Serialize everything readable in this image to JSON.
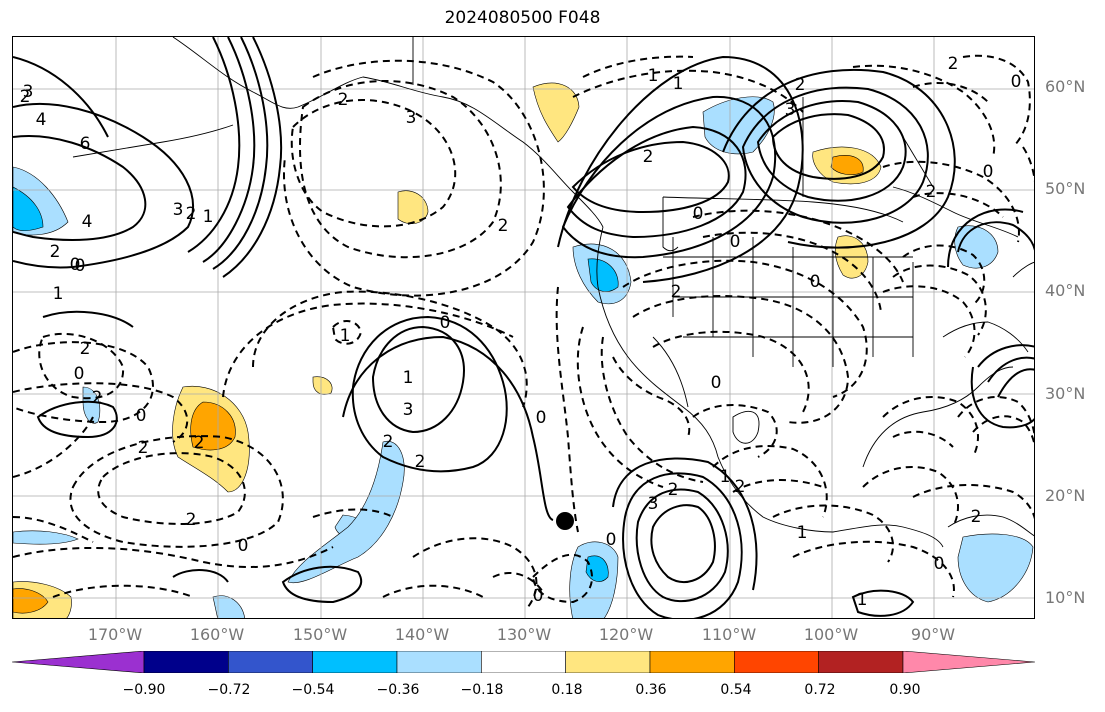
{
  "title": "2024080500 F048",
  "lat_labels": [
    "60°N",
    "50°N",
    "40°N",
    "30°N",
    "20°N",
    "10°N"
  ],
  "lon_labels": [
    "170°W",
    "160°W",
    "150°W",
    "140°W",
    "130°W",
    "120°W",
    "110°W",
    "100°W",
    "90°W"
  ],
  "colorbar": {
    "ticks": [
      "−0.90",
      "−0.72",
      "−0.54",
      "−0.36",
      "−0.18",
      "0.18",
      "0.36",
      "0.54",
      "0.72",
      "0.90"
    ],
    "colors": [
      "#9b30d0",
      "#00008b",
      "#3355cc",
      "#00bfff",
      "#aadfff",
      "#ffffff",
      "#ffe680",
      "#ffa500",
      "#ff4500",
      "#b22222",
      "#ff88aa"
    ]
  },
  "contour_labels": [
    "2",
    "4",
    "6",
    "3",
    "2",
    "0",
    "1",
    "2",
    "0",
    "4",
    "3",
    "2",
    "2",
    "1",
    "2",
    "0",
    "3",
    "2",
    "0",
    "2",
    "2",
    "0",
    "2",
    "3",
    "2",
    "1",
    "0",
    "2",
    "1",
    "0",
    "2",
    "1",
    "0",
    "1",
    "2",
    "0",
    "2",
    "0",
    "0",
    "0",
    "2",
    "3",
    "2",
    "0",
    "1",
    "2",
    "2",
    "0",
    "2",
    "0",
    "1",
    "0",
    "3",
    "1"
  ],
  "marker": "storm-center-dot"
}
